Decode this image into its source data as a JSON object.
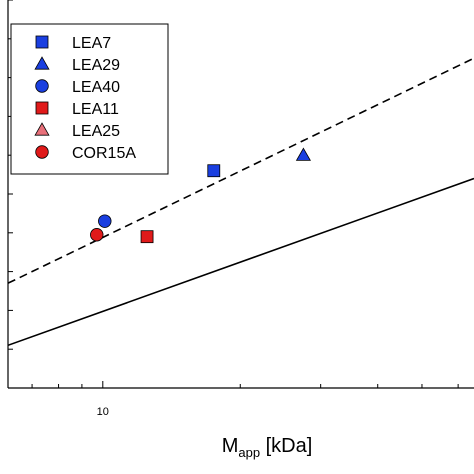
{
  "chart_data": {
    "type": "scatter",
    "title": "",
    "xlabel": {
      "main": "M",
      "sub": "app",
      "rest": " [kDa]"
    },
    "ylabel": "",
    "xscale": "log",
    "xlim": [
      6.2,
      65
    ],
    "ylim": [
      0,
      10
    ],
    "x_tick_labels": [
      {
        "value": 10,
        "label": "10"
      }
    ],
    "legend_position": "top-left",
    "series": [
      {
        "name": "LEA7",
        "marker": "square",
        "color": "#1a3fe0",
        "x": [
          17.5
        ],
        "y": [
          5.6
        ]
      },
      {
        "name": "LEA29",
        "marker": "triangle",
        "color": "#1a3fe0",
        "x": [
          27.5
        ],
        "y": [
          6.0
        ]
      },
      {
        "name": "LEA40",
        "marker": "circle",
        "color": "#1a3fe0",
        "x": [
          10.1
        ],
        "y": [
          4.3
        ]
      },
      {
        "name": "LEA11",
        "marker": "square",
        "color": "#e01a1a",
        "x": [
          12.5
        ],
        "y": [
          3.9
        ]
      },
      {
        "name": "LEA25",
        "marker": "triangle",
        "color": "#e8707a",
        "x": [],
        "y": []
      },
      {
        "name": "COR15A",
        "marker": "circle",
        "color": "#e01a1a",
        "x": [
          9.7
        ],
        "y": [
          3.95
        ]
      }
    ],
    "reference_lines": [
      {
        "style": "dashed",
        "color": "#000000",
        "points": [
          [
            6.2,
            2.7
          ],
          [
            65,
            8.5
          ]
        ]
      },
      {
        "style": "solid",
        "color": "#000000",
        "points": [
          [
            6.2,
            1.1
          ],
          [
            65,
            5.4
          ]
        ]
      }
    ]
  }
}
